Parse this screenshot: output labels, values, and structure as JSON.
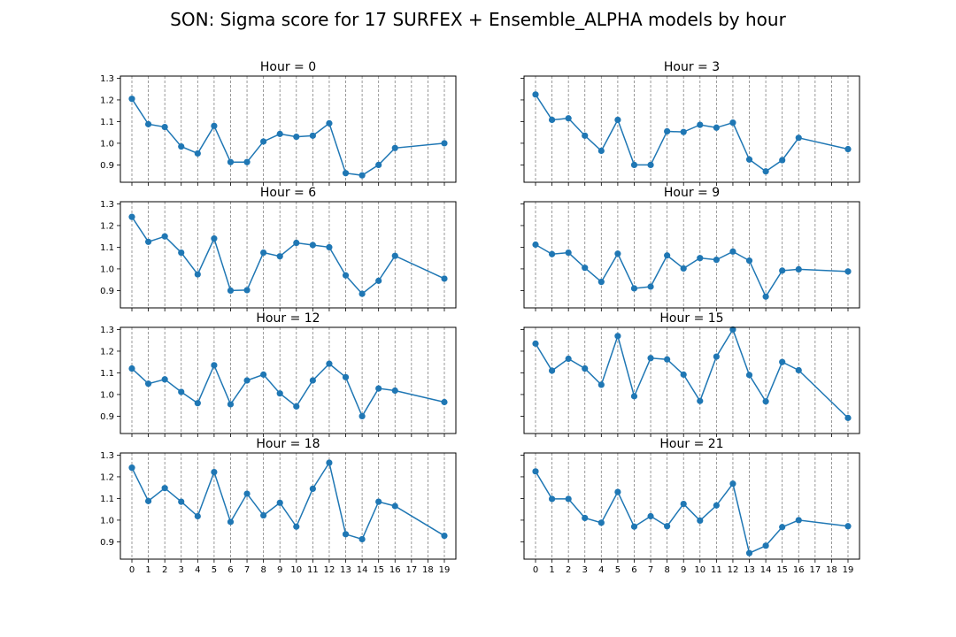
{
  "figure": {
    "title": "SON: Sigma score for 17 SURFEX + Ensemble_ALPHA models by hour"
  },
  "chart_data": {
    "type": "line",
    "x_ticks": [
      0,
      1,
      2,
      3,
      4,
      5,
      6,
      7,
      8,
      9,
      10,
      11,
      12,
      13,
      14,
      15,
      16,
      17,
      18,
      19
    ],
    "xlim": [
      -0.7,
      19.7
    ],
    "ylim": [
      0.82,
      1.31
    ],
    "y_ticks": [
      0.9,
      1.0,
      1.1,
      1.2,
      1.3
    ],
    "y_tick_labels": [
      "0.9",
      "1.0",
      "1.1",
      "1.2",
      "1.3"
    ],
    "grid": "x-dashed",
    "subplots": [
      {
        "title": "Hour = 0",
        "x": [
          0,
          1,
          2,
          3,
          4,
          5,
          6,
          7,
          8,
          9,
          10,
          11,
          12,
          13,
          14,
          15,
          16,
          19
        ],
        "y": [
          1.205,
          1.088,
          1.075,
          0.985,
          0.953,
          1.08,
          0.913,
          0.913,
          1.008,
          1.043,
          1.03,
          1.035,
          1.092,
          0.862,
          0.852,
          0.9,
          0.978,
          1.0
        ]
      },
      {
        "title": "Hour = 3",
        "x": [
          0,
          1,
          2,
          3,
          4,
          5,
          6,
          7,
          8,
          9,
          10,
          11,
          12,
          13,
          14,
          15,
          16,
          19
        ],
        "y": [
          1.225,
          1.108,
          1.115,
          1.035,
          0.965,
          1.108,
          0.9,
          0.9,
          1.055,
          1.052,
          1.085,
          1.072,
          1.095,
          0.925,
          0.87,
          0.922,
          1.025,
          0.973
        ]
      },
      {
        "title": "Hour = 6",
        "x": [
          0,
          1,
          2,
          3,
          4,
          5,
          6,
          7,
          8,
          9,
          10,
          11,
          12,
          13,
          14,
          15,
          16,
          19
        ],
        "y": [
          1.24,
          1.125,
          1.15,
          1.075,
          0.975,
          1.14,
          0.9,
          0.902,
          1.075,
          1.058,
          1.12,
          1.11,
          1.1,
          0.97,
          0.885,
          0.945,
          1.06,
          0.955
        ]
      },
      {
        "title": "Hour = 9",
        "x": [
          0,
          1,
          2,
          3,
          4,
          5,
          6,
          7,
          8,
          9,
          10,
          11,
          12,
          13,
          14,
          15,
          16,
          19
        ],
        "y": [
          1.112,
          1.068,
          1.075,
          1.005,
          0.94,
          1.07,
          0.91,
          0.918,
          1.062,
          1.002,
          1.05,
          1.042,
          1.08,
          1.038,
          0.872,
          0.992,
          0.998,
          0.988
        ]
      },
      {
        "title": "Hour = 12",
        "x": [
          0,
          1,
          2,
          3,
          4,
          5,
          6,
          7,
          8,
          9,
          10,
          11,
          12,
          13,
          14,
          15,
          16,
          19
        ],
        "y": [
          1.12,
          1.05,
          1.07,
          1.012,
          0.96,
          1.135,
          0.955,
          1.065,
          1.092,
          1.005,
          0.945,
          1.065,
          1.142,
          1.08,
          0.9,
          1.028,
          1.018,
          0.965
        ]
      },
      {
        "title": "Hour = 15",
        "x": [
          0,
          1,
          2,
          3,
          4,
          5,
          6,
          7,
          8,
          9,
          10,
          11,
          12,
          13,
          14,
          15,
          16,
          19
        ],
        "y": [
          1.235,
          1.11,
          1.165,
          1.12,
          1.045,
          1.27,
          0.992,
          1.168,
          1.162,
          1.092,
          0.97,
          1.175,
          1.3,
          1.09,
          0.968,
          1.15,
          1.112,
          0.892
        ]
      },
      {
        "title": "Hour = 18",
        "x": [
          0,
          1,
          2,
          3,
          4,
          5,
          6,
          7,
          8,
          9,
          10,
          11,
          12,
          13,
          14,
          15,
          16,
          19
        ],
        "y": [
          1.242,
          1.088,
          1.148,
          1.085,
          1.018,
          1.222,
          0.992,
          1.122,
          1.022,
          1.08,
          0.97,
          1.145,
          1.265,
          0.935,
          0.912,
          1.085,
          1.065,
          0.928
        ]
      },
      {
        "title": "Hour = 21",
        "x": [
          0,
          1,
          2,
          3,
          4,
          5,
          6,
          7,
          8,
          9,
          10,
          11,
          12,
          13,
          14,
          15,
          16,
          19
        ],
        "y": [
          1.225,
          1.098,
          1.098,
          1.01,
          0.988,
          1.13,
          0.97,
          1.018,
          0.972,
          1.075,
          0.998,
          1.068,
          1.168,
          0.848,
          0.882,
          0.968,
          1.0,
          0.972
        ]
      }
    ]
  },
  "colors": {
    "series": "#1f77b4",
    "grid": "#808080",
    "axes": "#000000"
  }
}
